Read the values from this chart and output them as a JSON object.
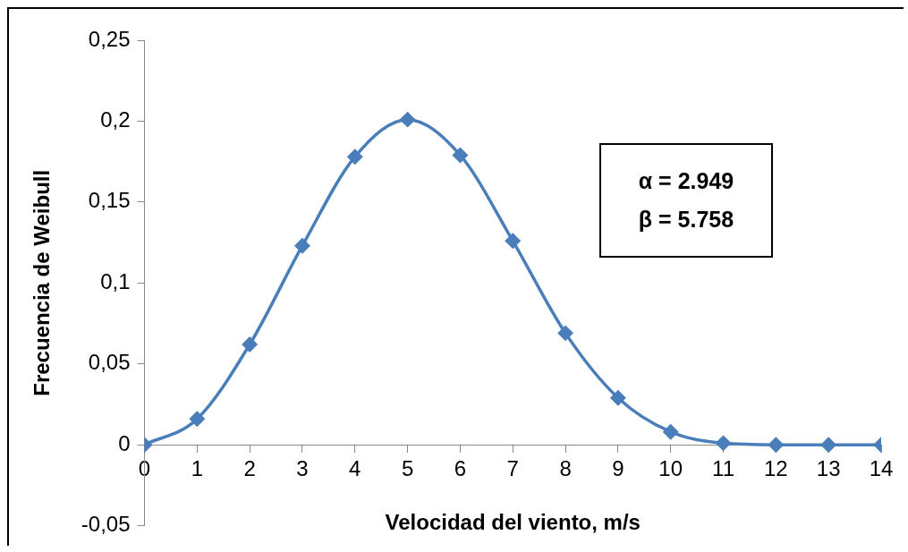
{
  "chart_data": {
    "type": "line",
    "xlabel": "Velocidad del viento, m/s",
    "ylabel": "Frecuencia de Weibull",
    "x": [
      0,
      1,
      2,
      3,
      4,
      5,
      6,
      7,
      8,
      9,
      10,
      11,
      12,
      13,
      14
    ],
    "series": [
      {
        "color": "#4a7ebb",
        "values": [
          0,
          0.016,
          0.062,
          0.123,
          0.178,
          0.201,
          0.179,
          0.126,
          0.069,
          0.029,
          0.008,
          0.001,
          0,
          0,
          0
        ]
      }
    ],
    "xlim": [
      0,
      14
    ],
    "xticks": [
      0,
      1,
      2,
      3,
      4,
      5,
      6,
      7,
      8,
      9,
      10,
      11,
      12,
      13,
      14
    ],
    "ylim": [
      -0.05,
      0.25
    ],
    "yticks": [
      {
        "value": -0.05,
        "label": "-0,05"
      },
      {
        "value": 0,
        "label": "0"
      },
      {
        "value": 0.05,
        "label": "0,05"
      },
      {
        "value": 0.1,
        "label": "0,1"
      },
      {
        "value": 0.15,
        "label": "0,15"
      },
      {
        "value": 0.2,
        "label": "0,2"
      },
      {
        "value": 0.25,
        "label": "0,25"
      }
    ],
    "annotations": [
      "α = 2.949",
      "β = 5.758"
    ],
    "grid": false,
    "legend": false,
    "marker": "diamond",
    "line_style": "solid"
  }
}
